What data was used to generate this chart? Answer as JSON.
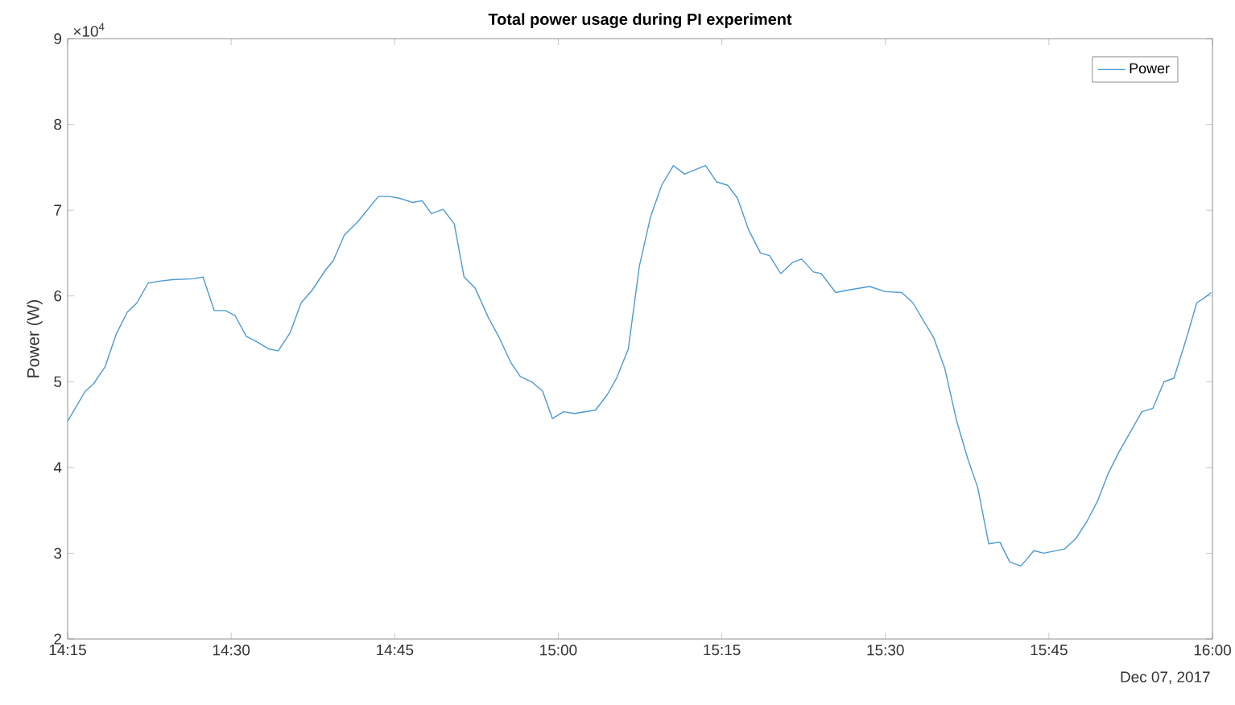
{
  "chart_data": {
    "type": "line",
    "title": "Total power usage during PI experiment",
    "ylabel": "Power (W)",
    "annotations": [
      "×10$^{4}$",
      "Dec 07, 2017"
    ],
    "xlim": [
      14.25,
      16
    ],
    "ylim": [
      2,
      9
    ],
    "xticks": [
      {
        "value": 14.25,
        "label": "14:15"
      },
      {
        "value": 14.5,
        "label": "14:30"
      },
      {
        "value": 14.75,
        "label": "14:45"
      },
      {
        "value": 15,
        "label": "15:00"
      },
      {
        "value": 15.25,
        "label": "15:15"
      },
      {
        "value": 15.5,
        "label": "15:30"
      },
      {
        "value": 15.75,
        "label": "15:45"
      },
      {
        "value": 16,
        "label": "16:00"
      }
    ],
    "yticks": [
      2,
      3,
      4,
      5,
      6,
      7,
      8,
      9
    ],
    "legend": "top right",
    "grid": false,
    "marker": "none",
    "line_style": "solid",
    "series": [
      {
        "name": "Power",
        "color": "#4d9bd0",
        "x": [
          14.25,
          14.277,
          14.289,
          14.307,
          14.324,
          14.341,
          14.356,
          14.373,
          14.388,
          14.41,
          14.442,
          14.457,
          14.474,
          14.491,
          14.506,
          14.523,
          14.538,
          14.558,
          14.572,
          14.59,
          14.607,
          14.624,
          14.644,
          14.656,
          14.673,
          14.693,
          14.725,
          14.742,
          14.757,
          14.777,
          14.792,
          14.806,
          14.824,
          14.841,
          14.856,
          14.873,
          14.893,
          14.91,
          14.927,
          14.942,
          14.959,
          14.976,
          14.991,
          15.008,
          15.025,
          15.057,
          15.075,
          15.089,
          15.107,
          15.124,
          15.141,
          15.158,
          15.176,
          15.193,
          15.225,
          15.242,
          15.259,
          15.274,
          15.291,
          15.309,
          15.323,
          15.34,
          15.358,
          15.372,
          15.39,
          15.402,
          15.424,
          15.444,
          15.476,
          15.5,
          15.525,
          15.542,
          15.574,
          15.591,
          15.609,
          15.626,
          15.641,
          15.658,
          15.675,
          15.69,
          15.707,
          15.727,
          15.742,
          15.774,
          15.791,
          15.808,
          15.825,
          15.84,
          15.857,
          15.875,
          15.892,
          15.909,
          15.926,
          15.941,
          15.958,
          15.976,
          15.988,
          15.998
        ],
        "values": [
          4.54,
          4.89,
          4.97,
          5.17,
          5.55,
          5.81,
          5.92,
          6.15,
          6.17,
          6.19,
          6.2,
          6.22,
          5.83,
          5.83,
          5.77,
          5.53,
          5.47,
          5.38,
          5.36,
          5.57,
          5.92,
          6.07,
          6.3,
          6.41,
          6.71,
          6.86,
          7.16,
          7.16,
          7.14,
          7.09,
          7.11,
          6.96,
          7.01,
          6.84,
          6.22,
          6.09,
          5.75,
          5.51,
          5.23,
          5.06,
          5.0,
          4.89,
          4.57,
          4.65,
          4.63,
          4.67,
          4.85,
          5.04,
          5.38,
          6.35,
          6.92,
          7.29,
          7.52,
          7.42,
          7.52,
          7.33,
          7.29,
          7.14,
          6.77,
          6.5,
          6.47,
          6.26,
          6.39,
          6.43,
          6.28,
          6.26,
          6.04,
          6.07,
          6.11,
          6.05,
          6.04,
          5.92,
          5.51,
          5.15,
          4.54,
          4.1,
          3.77,
          3.11,
          3.13,
          2.9,
          2.85,
          3.03,
          3.0,
          3.05,
          3.17,
          3.37,
          3.62,
          3.92,
          4.18,
          4.42,
          4.65,
          4.69,
          5.0,
          5.04,
          5.45,
          5.92,
          5.98,
          6.04
        ]
      }
    ]
  }
}
